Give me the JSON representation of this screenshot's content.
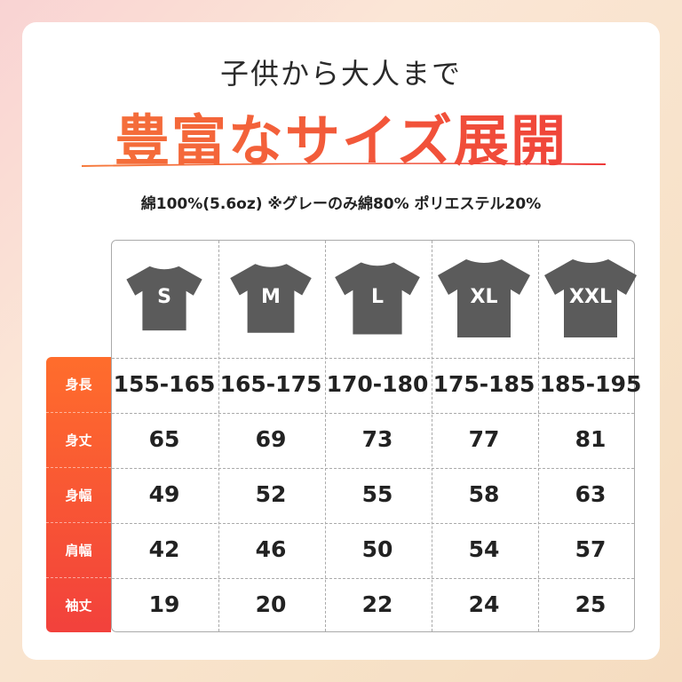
{
  "header": {
    "subtitle": "子供から大人まで",
    "title": "豊富なサイズ展開",
    "note": "綿100%(5.6oz) ※グレーのみ綿80% ポリエステル20%"
  },
  "colors": {
    "accent_start": "#ff6d2c",
    "accent_end": "#f2413c",
    "shirt": "#5b5b5b"
  },
  "sizes": [
    "S",
    "M",
    "L",
    "XL",
    "XXL"
  ],
  "rows": [
    {
      "label": "身長",
      "values": [
        "155-165",
        "165-175",
        "170-180",
        "175-185",
        "185-195"
      ]
    },
    {
      "label": "身丈",
      "values": [
        "65",
        "69",
        "73",
        "77",
        "81"
      ]
    },
    {
      "label": "身幅",
      "values": [
        "49",
        "52",
        "55",
        "58",
        "63"
      ]
    },
    {
      "label": "肩幅",
      "values": [
        "42",
        "46",
        "50",
        "54",
        "57"
      ]
    },
    {
      "label": "袖丈",
      "values": [
        "19",
        "20",
        "22",
        "24",
        "25"
      ]
    }
  ]
}
